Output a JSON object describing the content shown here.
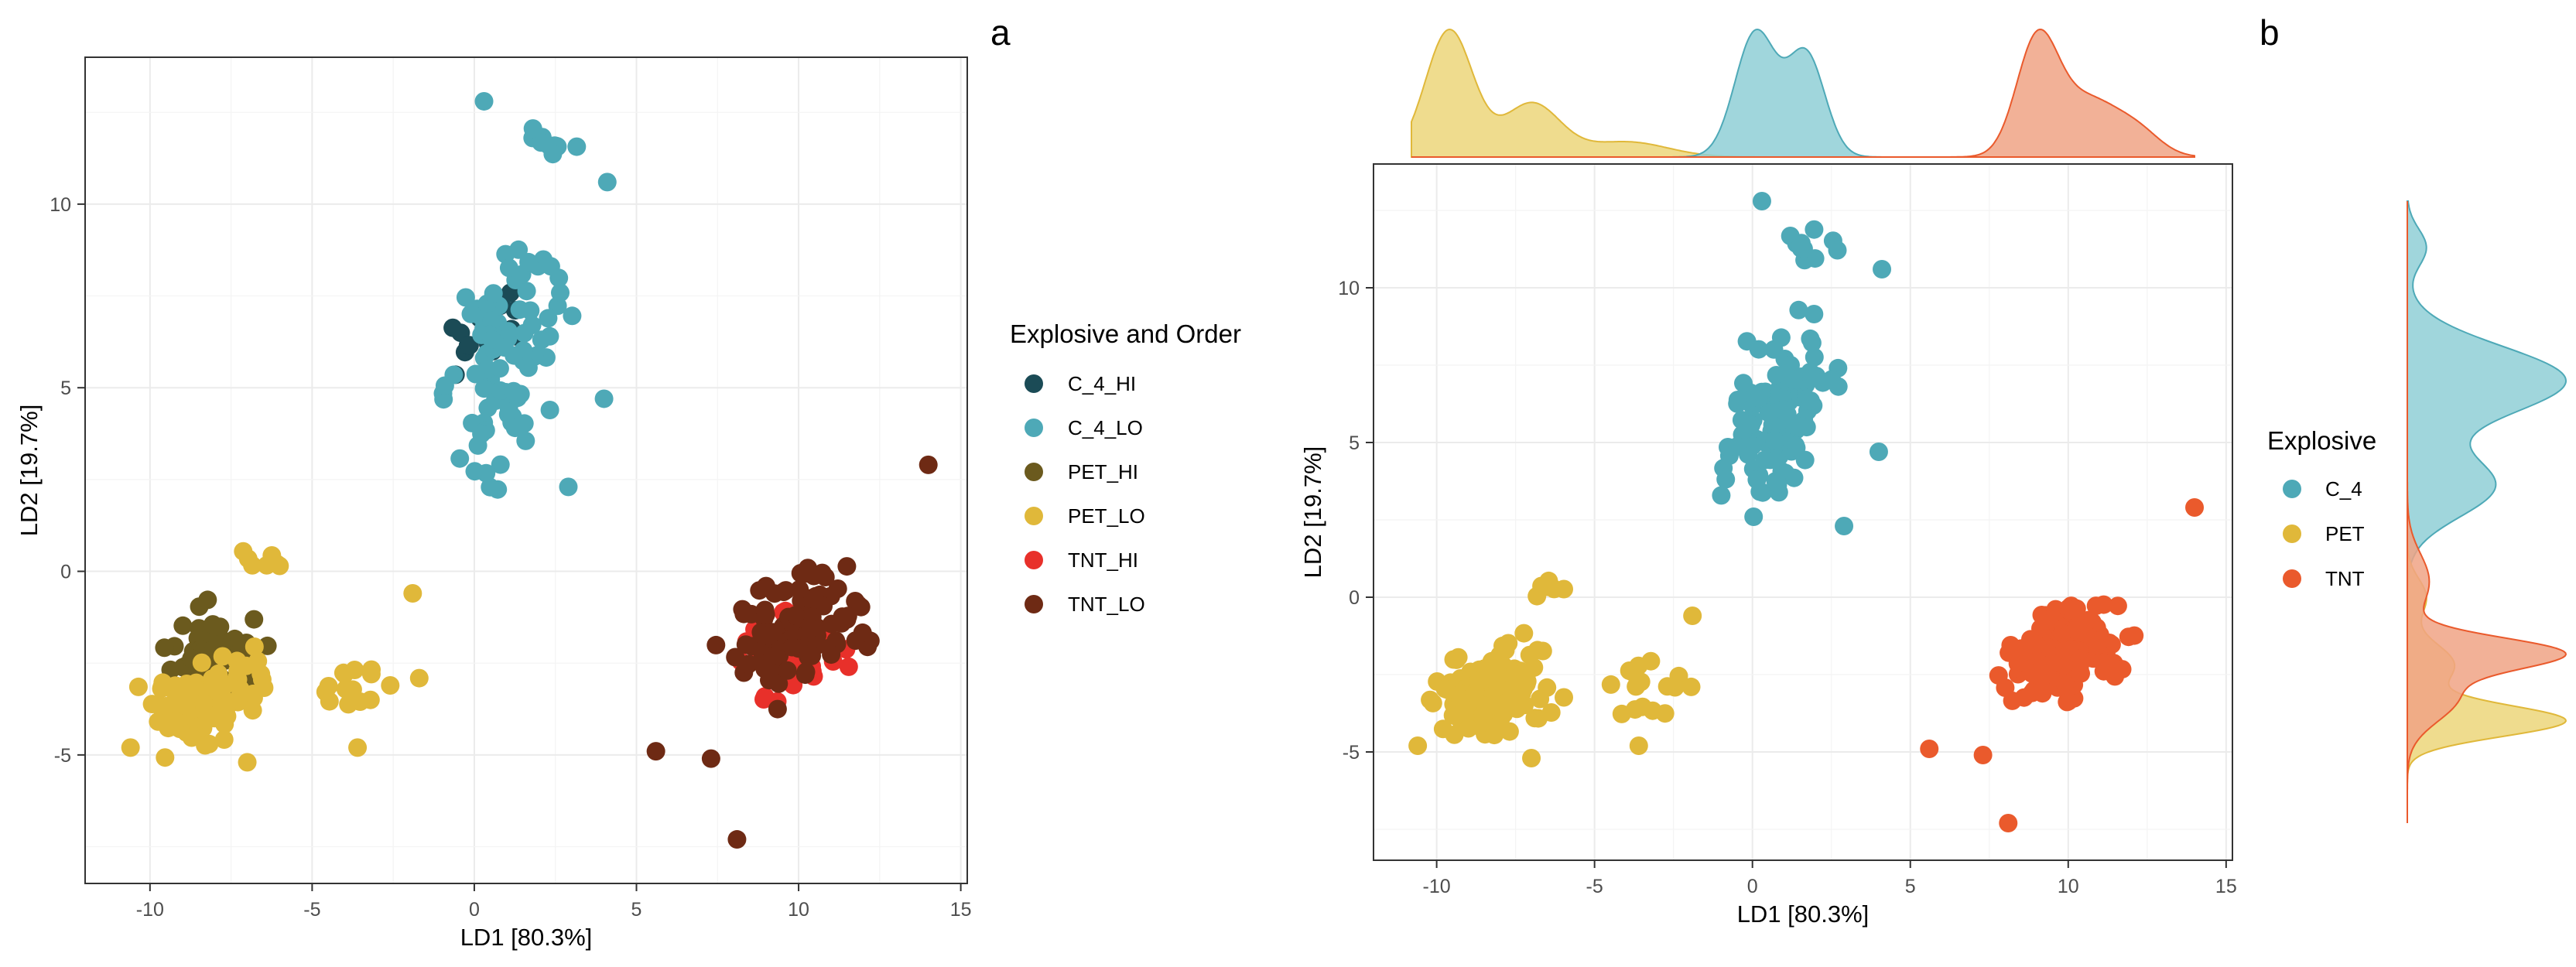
{
  "chart_data": [
    {
      "panel_label": "a",
      "type": "scatter",
      "title": "",
      "xlabel": "LD1 [80.3%]",
      "ylabel": "LD2 [19.7%]",
      "xlim": [
        -12,
        15.2
      ],
      "ylim": [
        -8.5,
        14.0
      ],
      "xticks": [
        "-10",
        "-5",
        "0",
        "5",
        "10",
        "15"
      ],
      "yticks": [
        "-5",
        "0",
        "5",
        "10"
      ],
      "grid": true,
      "legend": {
        "title": "Explosive and Order",
        "position": "right",
        "entries": [
          "C_4_HI",
          "C_4_LO",
          "PET_HI",
          "PET_LO",
          "TNT_HI",
          "TNT_LO"
        ]
      },
      "series": [
        {
          "name": "C_4_HI",
          "color": "#1b4b56",
          "clusters": [
            {
              "center": [
                0.5,
                6.5
              ],
              "spread": [
                1.1,
                1.4
              ],
              "n": 24,
              "angle": -55
            }
          ]
        },
        {
          "name": "C_4_LO",
          "color": "#4ea9b7",
          "clusters": [
            {
              "center": [
                1.0,
                5.8
              ],
              "spread": [
                1.5,
                3.2
              ],
              "n": 85,
              "angle": -15
            },
            {
              "center": [
                2.2,
                11.4
              ],
              "spread": [
                1.2,
                0.6
              ],
              "n": 10,
              "angle": 0
            }
          ]
        },
        {
          "name": "PET_HI",
          "color": "#6b5a1e",
          "clusters": [
            {
              "center": [
                -8.0,
                -2.3
              ],
              "spread": [
                1.4,
                1.3
              ],
              "n": 70,
              "angle": 30
            }
          ]
        },
        {
          "name": "PET_LO",
          "color": "#e0b83a",
          "clusters": [
            {
              "center": [
                -8.3,
                -3.6
              ],
              "spread": [
                1.7,
                1.0
              ],
              "n": 85,
              "angle": 15
            },
            {
              "center": [
                -6.6,
                0.3
              ],
              "spread": [
                0.6,
                0.35
              ],
              "n": 7,
              "angle": 0
            },
            {
              "center": [
                -3.5,
                -3.1
              ],
              "spread": [
                1.6,
                1.1
              ],
              "n": 16,
              "angle": 20
            }
          ]
        },
        {
          "name": "TNT_HI",
          "color": "#e8302a",
          "clusters": [
            {
              "center": [
                9.8,
                -2.2
              ],
              "spread": [
                1.4,
                1.0
              ],
              "n": 70,
              "angle": 25
            }
          ]
        },
        {
          "name": "TNT_LO",
          "color": "#6e2a14",
          "clusters": [
            {
              "center": [
                10.0,
                -1.6
              ],
              "spread": [
                2.2,
                1.4
              ],
              "n": 95,
              "angle": 30
            }
          ]
        }
      ],
      "extra_points": [
        {
          "series": "TNT_LO",
          "x": 14.0,
          "y": 2.9
        },
        {
          "series": "TNT_LO",
          "x": 8.1,
          "y": -7.3
        },
        {
          "series": "TNT_LO",
          "x": 5.6,
          "y": -4.9
        },
        {
          "series": "TNT_LO",
          "x": 7.3,
          "y": -5.1
        },
        {
          "series": "C_4_LO",
          "x": 0.3,
          "y": 12.8
        },
        {
          "series": "C_4_LO",
          "x": 4.1,
          "y": 10.6
        },
        {
          "series": "C_4_LO",
          "x": 2.9,
          "y": 2.3
        },
        {
          "series": "C_4_LO",
          "x": 4.0,
          "y": 4.7
        },
        {
          "series": "PET_LO",
          "x": -1.9,
          "y": -0.6
        },
        {
          "series": "PET_LO",
          "x": -10.6,
          "y": -4.8
        },
        {
          "series": "PET_LO",
          "x": -7.0,
          "y": -5.2
        },
        {
          "series": "PET_LO",
          "x": -3.6,
          "y": -4.8
        }
      ]
    },
    {
      "panel_label": "b",
      "type": "scatter",
      "title": "",
      "xlabel": "LD1 [80.3%]",
      "ylabel": "LD2 [19.7%]",
      "xlim": [
        -12,
        15.2
      ],
      "ylim": [
        -8.5,
        14.0
      ],
      "xticks": [
        "-10",
        "-5",
        "0",
        "5",
        "10",
        "15"
      ],
      "yticks": [
        "-5",
        "0",
        "5",
        "10"
      ],
      "grid": true,
      "marginal_density": "top (LD1) and right (LD2) by Explosive",
      "legend": {
        "title": "Explosive",
        "position": "right",
        "entries": [
          "C_4",
          "PET",
          "TNT"
        ]
      },
      "series": [
        {
          "name": "C_4",
          "color": "#4ea9b7",
          "fill": "#8fcfd6",
          "clusters": [
            {
              "center": [
                0.9,
                5.9
              ],
              "spread": [
                1.5,
                3.1
              ],
              "n": 110,
              "angle": -15
            },
            {
              "center": [
                2.2,
                11.4
              ],
              "spread": [
                1.2,
                0.6
              ],
              "n": 10,
              "angle": 0
            }
          ]
        },
        {
          "name": "PET",
          "color": "#e0b83a",
          "fill": "#ecd67a",
          "clusters": [
            {
              "center": [
                -8.2,
                -3.0
              ],
              "spread": [
                1.8,
                1.3
              ],
              "n": 150,
              "angle": 25
            },
            {
              "center": [
                -6.6,
                0.3
              ],
              "spread": [
                0.6,
                0.35
              ],
              "n": 7,
              "angle": 0
            },
            {
              "center": [
                -3.5,
                -3.1
              ],
              "spread": [
                1.6,
                1.1
              ],
              "n": 16,
              "angle": 20
            }
          ]
        },
        {
          "name": "TNT",
          "color": "#ea5a2c",
          "fill": "#f0a385",
          "clusters": [
            {
              "center": [
                9.9,
                -1.8
              ],
              "spread": [
                2.0,
                1.3
              ],
              "n": 165,
              "angle": 28
            }
          ]
        }
      ],
      "extra_points": [
        {
          "series": "TNT",
          "x": 14.0,
          "y": 2.9
        },
        {
          "series": "TNT",
          "x": 8.1,
          "y": -7.3
        },
        {
          "series": "TNT",
          "x": 5.6,
          "y": -4.9
        },
        {
          "series": "TNT",
          "x": 7.3,
          "y": -5.1
        },
        {
          "series": "C_4",
          "x": 0.3,
          "y": 12.8
        },
        {
          "series": "C_4",
          "x": 4.1,
          "y": 10.6
        },
        {
          "series": "C_4",
          "x": 2.9,
          "y": 2.3
        },
        {
          "series": "C_4",
          "x": 4.0,
          "y": 4.7
        },
        {
          "series": "PET",
          "x": -1.9,
          "y": -0.6
        },
        {
          "series": "PET",
          "x": -10.6,
          "y": -4.8
        },
        {
          "series": "PET",
          "x": -7.0,
          "y": -5.2
        },
        {
          "series": "PET",
          "x": -3.6,
          "y": -4.8
        }
      ],
      "density_ld1": [
        {
          "series": "PET",
          "peaks": [
            {
              "mu": -9.6,
              "sd": 0.75,
              "w": 1.0
            },
            {
              "mu": -7.0,
              "sd": 0.9,
              "w": 0.42
            },
            {
              "mu": -4.0,
              "sd": 1.3,
              "w": 0.12
            }
          ]
        },
        {
          "series": "C_4",
          "peaks": [
            {
              "mu": 0.1,
              "sd": 0.65,
              "w": 1.0
            },
            {
              "mu": 1.7,
              "sd": 0.6,
              "w": 0.82
            }
          ]
        },
        {
          "series": "TNT",
          "peaks": [
            {
              "mu": 9.0,
              "sd": 0.65,
              "w": 1.0
            },
            {
              "mu": 10.6,
              "sd": 1.1,
              "w": 0.55
            },
            {
              "mu": 12.3,
              "sd": 0.7,
              "w": 0.15
            }
          ]
        }
      ],
      "density_ld2": [
        {
          "series": "C_4",
          "peaks": [
            {
              "mu": 7.0,
              "sd": 1.1,
              "w": 1.0
            },
            {
              "mu": 3.6,
              "sd": 1.0,
              "w": 0.55
            },
            {
              "mu": 11.3,
              "sd": 0.6,
              "w": 0.12
            }
          ]
        },
        {
          "series": "PET",
          "peaks": [
            {
              "mu": -4.0,
              "sd": 0.5,
              "w": 1.0
            },
            {
              "mu": -2.2,
              "sd": 0.7,
              "w": 0.3
            },
            {
              "mu": 0.0,
              "sd": 0.6,
              "w": 0.12
            }
          ]
        },
        {
          "series": "TNT",
          "peaks": [
            {
              "mu": -1.8,
              "sd": 0.5,
              "w": 1.0
            },
            {
              "mu": -3.2,
              "sd": 0.8,
              "w": 0.35
            },
            {
              "mu": 0.5,
              "sd": 0.9,
              "w": 0.15
            }
          ]
        }
      ]
    }
  ]
}
